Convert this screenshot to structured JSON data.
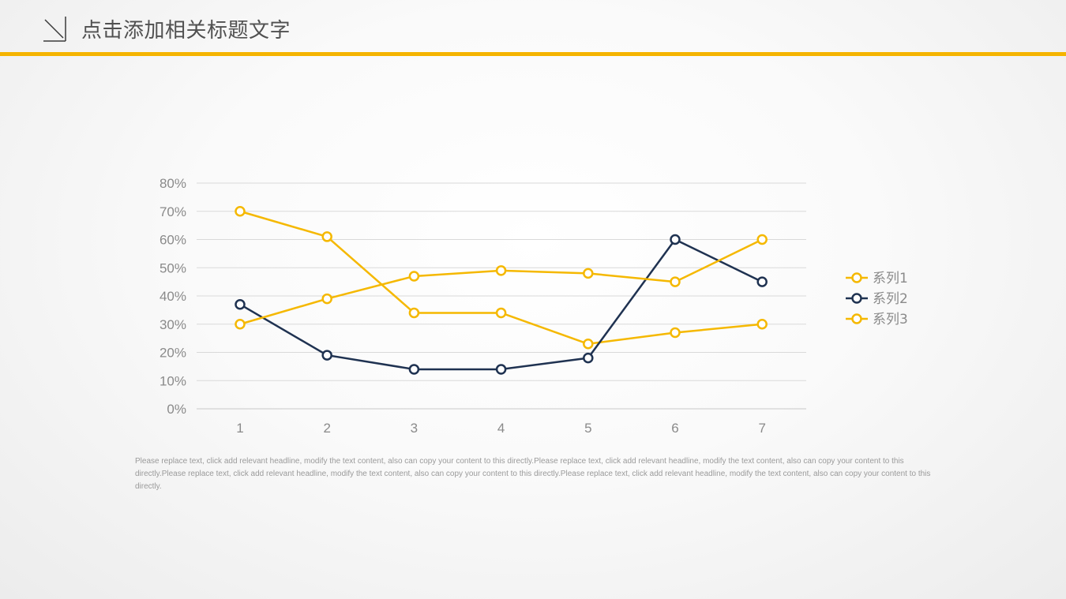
{
  "header": {
    "title": "点击添加相关标题文字",
    "accent_color": "#F5B400",
    "icon": "diagonal-arrow-icon"
  },
  "chart_data": {
    "type": "line",
    "categories": [
      "1",
      "2",
      "3",
      "4",
      "5",
      "6",
      "7"
    ],
    "ylim": [
      0,
      0.8
    ],
    "yticks": [
      0,
      0.1,
      0.2,
      0.3,
      0.4,
      0.5,
      0.6,
      0.7,
      0.8
    ],
    "ytick_labels": [
      "0%",
      "10%",
      "20%",
      "30%",
      "40%",
      "50%",
      "60%",
      "70%",
      "80%"
    ],
    "grid": true,
    "legend_position": "right",
    "series": [
      {
        "name": "系列1",
        "color": "#F5B800",
        "values": [
          0.7,
          0.61,
          0.34,
          0.34,
          0.23,
          0.27,
          0.3
        ]
      },
      {
        "name": "系列2",
        "color": "#1F3251",
        "values": [
          0.37,
          0.19,
          0.14,
          0.14,
          0.18,
          0.6,
          0.45
        ]
      },
      {
        "name": "系列3",
        "color": "#F5B800",
        "values": [
          0.3,
          0.39,
          0.47,
          0.49,
          0.48,
          0.45,
          0.6
        ]
      }
    ]
  },
  "footnote": "Please replace text, click add relevant headline, modify the text content, also can copy your content to this directly.Please replace text, click add relevant headline, modify the text content, also can copy your content to this directly.Please replace text, click add relevant headline, modify the text content, also can copy your content to this directly.Please replace text, click add relevant headline, modify the text content, also can copy your content to this directly."
}
